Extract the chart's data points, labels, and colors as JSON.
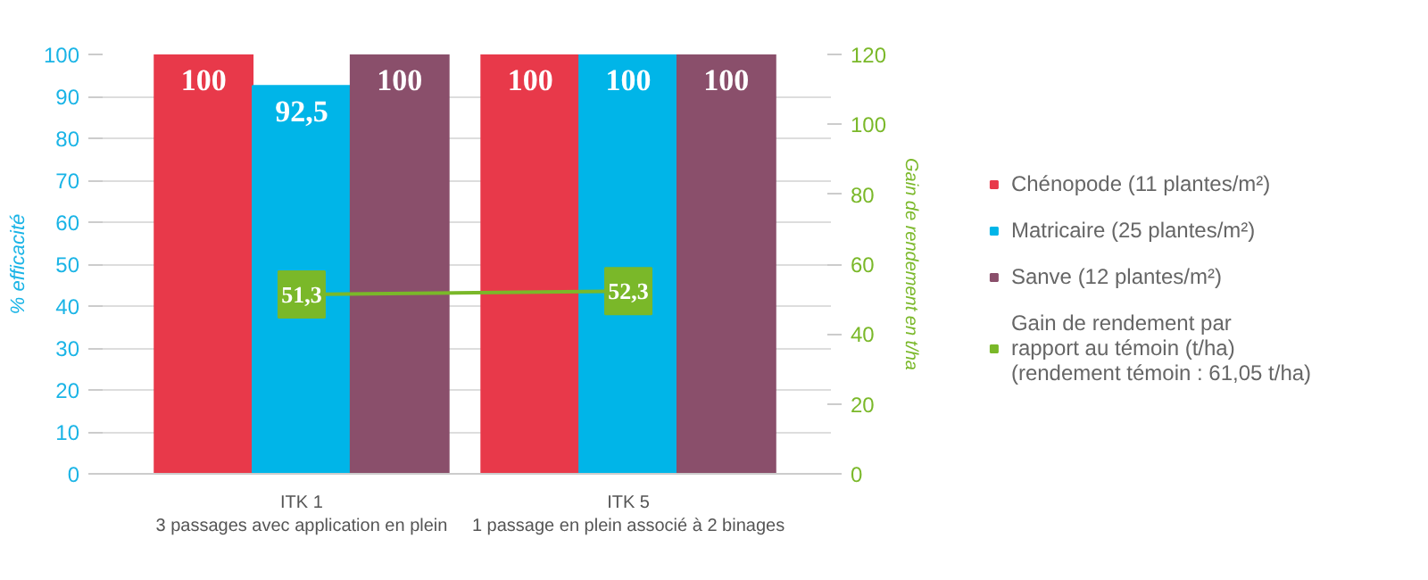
{
  "chart_data": {
    "type": "bar",
    "categories": [
      "ITK 1\n3 passages avec application en plein",
      "ITK 5\n1 passage en plein associé à 2 binages"
    ],
    "ylabel": "% efficacité",
    "y2label": "Gain de rendement en t/ha",
    "ylim": [
      0,
      100
    ],
    "yticks": [
      0,
      10,
      20,
      30,
      40,
      50,
      60,
      70,
      80,
      90,
      100
    ],
    "y2lim": [
      0,
      120
    ],
    "y2ticks": [
      0,
      20,
      40,
      60,
      80,
      100,
      120
    ],
    "grid": "y",
    "legend": "right",
    "data_labels": true,
    "series": [
      {
        "name": "Chénopode (11 plantes/m²)",
        "color": "#e8394a",
        "values": [
          100,
          100
        ]
      },
      {
        "name": "Matricaire (25 plantes/m²)",
        "color": "#00b5e8",
        "values": [
          92.5,
          100
        ],
        "value_labels": [
          "92,5",
          "100"
        ]
      },
      {
        "name": "Sanve (12 plantes/m²)",
        "color": "#8a4f6b",
        "values": [
          100,
          100
        ]
      },
      {
        "name": "Gain de rendement par\nrapport au témoin (t/ha)\n(rendement témoin : 61,05 t/ha)",
        "color": "#7ab829",
        "type": "line",
        "axis": "y2",
        "marker": "square",
        "values": [
          51.3,
          52.3
        ],
        "value_labels": [
          "51,3",
          "52,3"
        ]
      }
    ]
  }
}
